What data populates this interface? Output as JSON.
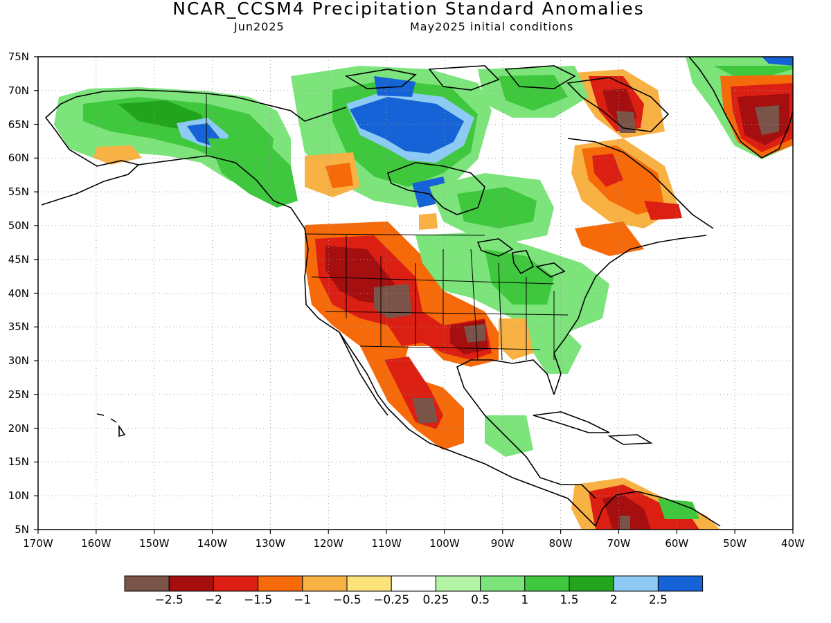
{
  "title": "NCAR_CCSM4 Precipitation Standard Anomalies",
  "subtitle_left": "Jun2025",
  "subtitle_right": "May2025 initial conditions",
  "lat_labels": [
    "75N",
    "70N",
    "65N",
    "60N",
    "55N",
    "50N",
    "45N",
    "40N",
    "35N",
    "30N",
    "25N",
    "20N",
    "15N",
    "10N",
    "5N"
  ],
  "lon_labels": [
    "170W",
    "160W",
    "150W",
    "140W",
    "130W",
    "120W",
    "110W",
    "100W",
    "90W",
    "80W",
    "70W",
    "60W",
    "50W",
    "40W"
  ],
  "colorbar": {
    "colors": [
      "#7b5449",
      "#a50f0f",
      "#dc1f13",
      "#f66a0a",
      "#f8b143",
      "#fbe27a",
      "#ffffff",
      "#b5f4a7",
      "#7ce47b",
      "#3fc83e",
      "#22a51c",
      "#8ecbf4",
      "#1563d6"
    ],
    "labels": [
      "−2.5",
      "−2",
      "−1.5",
      "−1",
      "−0.5",
      "−0.25",
      "0.25",
      "0.5",
      "1",
      "1.5",
      "2",
      "2.5"
    ]
  },
  "anomaly_regions": [
    {
      "name": "Alaska/Yukon wet",
      "level": "1.5"
    },
    {
      "name": "Central Alaska very wet",
      "level": "2.5"
    },
    {
      "name": "Hudson Bay north very wet",
      "level": "2.5"
    },
    {
      "name": "US Southwest dry",
      "level": "-2"
    },
    {
      "name": "Four Corners extreme dry",
      "level": "-2.5"
    },
    {
      "name": "South Central US dry",
      "level": "-2"
    },
    {
      "name": "Arkansas/Louisiana extreme dry",
      "level": "-2.5"
    },
    {
      "name": "Western Mexico dry",
      "level": "-2"
    },
    {
      "name": "Midwest/Great Lakes wet",
      "level": "1"
    },
    {
      "name": "Quebec/Labrador dry",
      "level": "-1.5"
    },
    {
      "name": "Greenland south dry",
      "level": "-2.5"
    },
    {
      "name": "Baffin Island dry",
      "level": "-2"
    },
    {
      "name": "Northern South America dry",
      "level": "-2"
    }
  ]
}
